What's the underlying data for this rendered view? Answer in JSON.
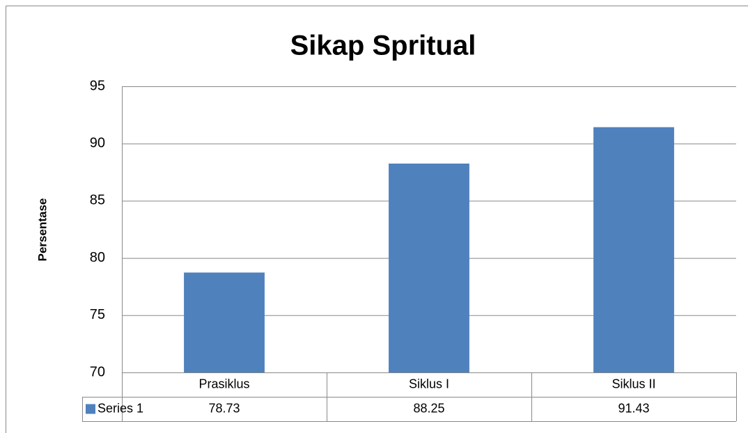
{
  "chart_data": {
    "type": "bar",
    "title": "Sikap Spritual",
    "y_label": "Persentase",
    "categories": [
      "Prasiklus",
      "Siklus I",
      "Siklus II"
    ],
    "series": [
      {
        "name": "Series 1",
        "color": "#4f81bd",
        "values": [
          78.73,
          88.25,
          91.43
        ]
      }
    ],
    "ylim": [
      70,
      95
    ],
    "yticks": [
      70,
      75,
      80,
      85,
      90,
      95
    ],
    "grid": true,
    "data_table": true
  }
}
